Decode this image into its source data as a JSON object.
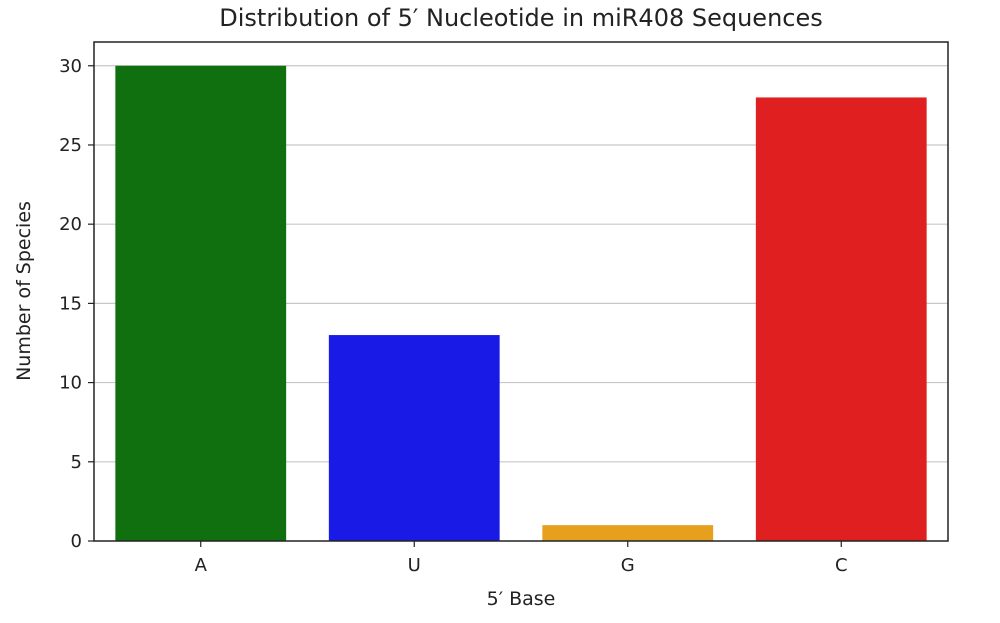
{
  "chart_data": {
    "type": "bar",
    "title": "Distribution of 5′ Nucleotide in miR408 Sequences",
    "xlabel": "5′ Base",
    "ylabel": "Number of Species",
    "categories": [
      "A",
      "U",
      "G",
      "C"
    ],
    "values": [
      30,
      13,
      1,
      28
    ],
    "colors": [
      "#107010",
      "#1a1ae6",
      "#e6a01e",
      "#e02020"
    ],
    "ylim": [
      0,
      31.5
    ],
    "yticks": [
      0,
      5,
      10,
      15,
      20,
      25,
      30
    ],
    "grid": "y",
    "legend": "none"
  }
}
